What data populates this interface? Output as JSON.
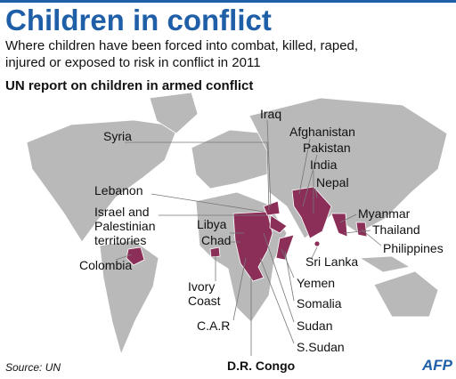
{
  "header": {
    "title": "Children in conflict",
    "subtitle": [
      "Where children have been forced into combat, killed, raped,",
      "injured or exposed to risk in conflict in 2011"
    ],
    "section": "UN report on children in armed conflict"
  },
  "labels": [
    [
      "Iraq"
    ],
    [
      "Syria"
    ],
    [
      "Afghanistan"
    ],
    [
      "Pakistan"
    ],
    [
      "India"
    ],
    [
      "Nepal"
    ],
    [
      "Lebanon"
    ],
    [
      "Israel and",
      "Palestinian",
      "territories"
    ],
    [
      "Myanmar"
    ],
    [
      "Libya"
    ],
    [
      "Thailand"
    ],
    [
      "Chad"
    ],
    [
      "Philippines"
    ],
    [
      "Colombia"
    ],
    [
      "Sri Lanka"
    ],
    [
      "Yemen"
    ],
    [
      "Ivory",
      "Coast"
    ],
    [
      "Somalia"
    ],
    [
      "C.A.R"
    ],
    [
      "Sudan"
    ],
    [
      "S.Sudan"
    ],
    [
      "D.R. Congo"
    ]
  ],
  "footer": {
    "source": "Source: UN",
    "logo": "AFP"
  }
}
